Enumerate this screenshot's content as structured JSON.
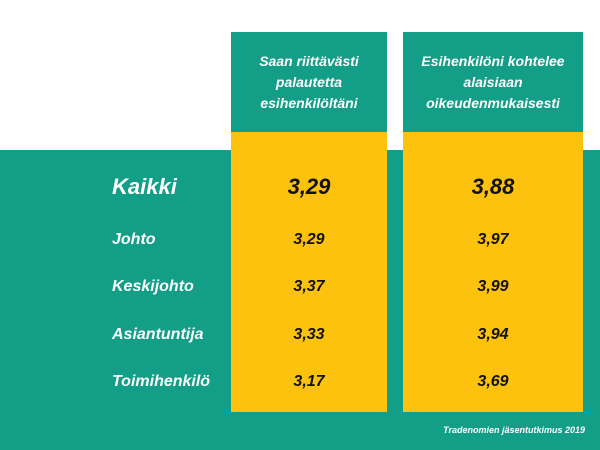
{
  "chart_data": {
    "type": "table",
    "columns": [
      "Saan riittävästi palautetta esihenkilöltäni",
      "Esihenkilöni kohtelee alaisiaan oikeudenmukaisesti"
    ],
    "rows": [
      {
        "label": "Kaikki",
        "values": [
          "3,29",
          "3,88"
        ]
      },
      {
        "label": "Johto",
        "values": [
          "3,29",
          "3,97"
        ]
      },
      {
        "label": "Keskijohto",
        "values": [
          "3,37",
          "3,99"
        ]
      },
      {
        "label": "Asiantuntija",
        "values": [
          "3,33",
          "3,94"
        ]
      },
      {
        "label": "Toimihenkilö",
        "values": [
          "3,17",
          "3,69"
        ]
      }
    ]
  },
  "header": {
    "col1_line1": "Saan riittävästi",
    "col1_line2": "palautetta",
    "col1_line3": "esihenkilöltäni",
    "col2_line1": "Esihenkilöni kohtelee",
    "col2_line2": "alaisiaan",
    "col2_line3": "oikeudenmukaisesti"
  },
  "source": "Tradenomien jäsentutkimus 2019",
  "colors": {
    "teal": "#129e87",
    "yellow": "#fcc20d",
    "text_dark": "#111111",
    "text_light": "#ffffff"
  }
}
